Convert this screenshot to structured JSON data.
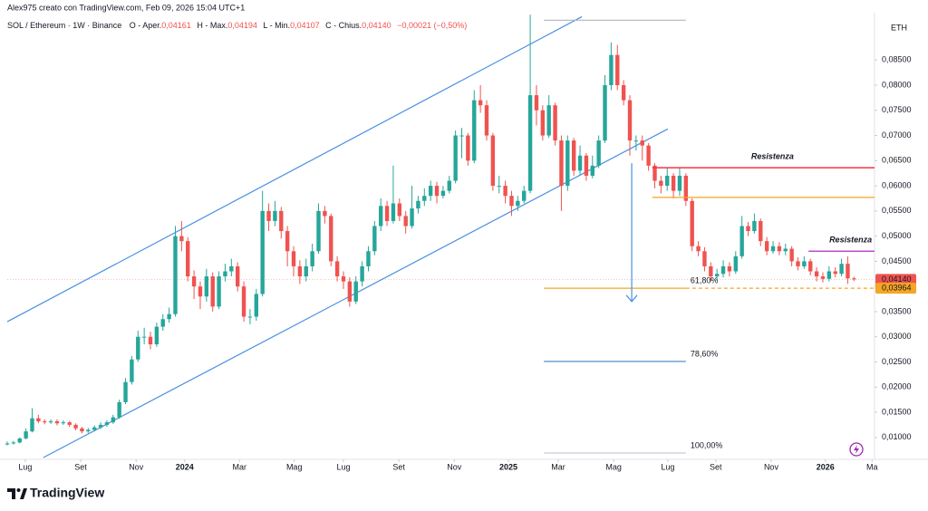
{
  "chart_data": {
    "type": "candlestick",
    "credit": "Alex975 creato con TradingView.com, Feb 09, 2026 15:04 UTC+1",
    "symbol": "SOL / Ethereum · 1W · Binance",
    "ohlc_legend": [
      {
        "label": "O - Aper.",
        "value": "0,04161"
      },
      {
        "label": "H - Max.",
        "value": "0,04194"
      },
      {
        "label": "L - Min.",
        "value": "0,04107"
      },
      {
        "label": "C - Chius.",
        "value": "0,04140"
      }
    ],
    "change": "−0,00021 (−0,50%)",
    "currency": "ETH",
    "brand": "TradingView",
    "up_color": "#26a69a",
    "down_color": "#ef5350",
    "grid": false,
    "xlim": [
      0,
      139.3
    ],
    "ylim": [
      0.006,
      0.0944
    ],
    "yticks": [
      {
        "value": 0.01,
        "label": "0,01000"
      },
      {
        "value": 0.015,
        "label": "0,01500"
      },
      {
        "value": 0.02,
        "label": "0,02000"
      },
      {
        "value": 0.025,
        "label": "0,02500"
      },
      {
        "value": 0.03,
        "label": "0,03000"
      },
      {
        "value": 0.035,
        "label": "0,03500"
      },
      {
        "value": 0.04,
        "label": "0,04000"
      },
      {
        "value": 0.045,
        "label": "0,04500"
      },
      {
        "value": 0.05,
        "label": "0,05000"
      },
      {
        "value": 0.055,
        "label": "0,05500"
      },
      {
        "value": 0.06,
        "label": "0,06000"
      },
      {
        "value": 0.065,
        "label": "0,06500"
      },
      {
        "value": 0.07,
        "label": "0,07000"
      },
      {
        "value": 0.075,
        "label": "0,07500"
      },
      {
        "value": 0.08,
        "label": "0,08000"
      },
      {
        "value": 0.085,
        "label": "0,08500"
      }
    ],
    "xticks": [
      {
        "value": 2.9,
        "label": "Lug"
      },
      {
        "value": 11.8,
        "label": "Set"
      },
      {
        "value": 20.7,
        "label": "Nov"
      },
      {
        "value": 28.5,
        "label": "2024"
      },
      {
        "value": 37.3,
        "label": "Mar"
      },
      {
        "value": 46.1,
        "label": "Mag"
      },
      {
        "value": 54.0,
        "label": "Lug"
      },
      {
        "value": 62.9,
        "label": "Set"
      },
      {
        "value": 71.8,
        "label": "Nov"
      },
      {
        "value": 80.5,
        "label": "2025"
      },
      {
        "value": 88.5,
        "label": "Mar"
      },
      {
        "value": 97.4,
        "label": "Mag"
      },
      {
        "value": 106.1,
        "label": "Lug"
      },
      {
        "value": 113.8,
        "label": "Set"
      },
      {
        "value": 122.7,
        "label": "Nov"
      },
      {
        "value": 131.4,
        "label": "2026"
      },
      {
        "value": 138.9,
        "label": "Ma"
      }
    ],
    "open": [
      0.0086,
      0.0088,
      0.009,
      0.0098,
      0.0112,
      0.0138,
      0.0132,
      0.013,
      0.0132,
      0.0128,
      0.013,
      0.0125,
      0.0118,
      0.0112,
      0.0115,
      0.012,
      0.0125,
      0.013,
      0.014,
      0.017,
      0.021,
      0.0255,
      0.03,
      0.03,
      0.0285,
      0.032,
      0.0335,
      0.0345,
      0.05,
      0.049,
      0.042,
      0.04,
      0.038,
      0.042,
      0.036,
      0.042,
      0.043,
      0.044,
      0.04,
      0.034,
      0.034,
      0.0385,
      0.055,
      0.053,
      0.055,
      0.051,
      0.047,
      0.044,
      0.042,
      0.044,
      0.047,
      0.055,
      0.054,
      0.045,
      0.042,
      0.041,
      0.037,
      0.041,
      0.044,
      0.047,
      0.052,
      0.056,
      0.053,
      0.0565,
      0.054,
      0.052,
      0.0555,
      0.057,
      0.058,
      0.06,
      0.058,
      0.059,
      0.061,
      0.07,
      0.07,
      0.065,
      0.077,
      0.076,
      0.07,
      0.06,
      0.06,
      0.058,
      0.056,
      0.057,
      0.059,
      0.078,
      0.075,
      0.07,
      0.076,
      0.069,
      0.06,
      0.069,
      0.063,
      0.066,
      0.062,
      0.064,
      0.069,
      0.08,
      0.086,
      0.08,
      0.077,
      0.069,
      0.069,
      0.068,
      0.064,
      0.061,
      0.06,
      0.062,
      0.059,
      0.062,
      0.057,
      0.048,
      0.047,
      0.044,
      0.042,
      0.0425,
      0.044,
      0.043,
      0.046,
      0.052,
      0.051,
      0.053,
      0.049,
      0.047,
      0.048,
      0.047,
      0.0475,
      0.045,
      0.044,
      0.045,
      0.043,
      0.042,
      0.0415,
      0.043,
      0.0425,
      0.0445,
      0.04161
    ],
    "high": [
      0.0092,
      0.0093,
      0.01,
      0.0118,
      0.0158,
      0.0145,
      0.0136,
      0.0136,
      0.0136,
      0.0134,
      0.0133,
      0.0128,
      0.0121,
      0.0119,
      0.0124,
      0.013,
      0.0134,
      0.0145,
      0.0175,
      0.0218,
      0.0262,
      0.0312,
      0.0318,
      0.031,
      0.0328,
      0.0345,
      0.0358,
      0.052,
      0.053,
      0.0498,
      0.0432,
      0.041,
      0.0435,
      0.0428,
      0.043,
      0.0445,
      0.0455,
      0.0448,
      0.041,
      0.0355,
      0.0395,
      0.059,
      0.0565,
      0.057,
      0.0558,
      0.052,
      0.048,
      0.0452,
      0.0455,
      0.0485,
      0.0565,
      0.056,
      0.0545,
      0.046,
      0.043,
      0.0418,
      0.042,
      0.045,
      0.048,
      0.053,
      0.0575,
      0.057,
      0.064,
      0.0575,
      0.055,
      0.06,
      0.058,
      0.0595,
      0.061,
      0.0608,
      0.06,
      0.062,
      0.071,
      0.0715,
      0.0705,
      0.079,
      0.08,
      0.077,
      0.0705,
      0.062,
      0.061,
      0.059,
      0.058,
      0.06,
      0.094,
      0.08,
      0.076,
      0.078,
      0.0765,
      0.07,
      0.07,
      0.0695,
      0.068,
      0.0665,
      0.066,
      0.07,
      0.082,
      0.0885,
      0.088,
      0.081,
      0.078,
      0.07,
      0.07,
      0.0685,
      0.0645,
      0.062,
      0.0635,
      0.0625,
      0.0635,
      0.0625,
      0.0575,
      0.049,
      0.0478,
      0.0448,
      0.0435,
      0.0452,
      0.0448,
      0.047,
      0.054,
      0.0528,
      0.0545,
      0.0535,
      0.0498,
      0.049,
      0.0488,
      0.0485,
      0.048,
      0.0458,
      0.046,
      0.0455,
      0.0438,
      0.0428,
      0.044,
      0.0438,
      0.0455,
      0.046,
      0.04194
    ],
    "low": [
      0.0084,
      0.0086,
      0.0088,
      0.0096,
      0.011,
      0.0128,
      0.0126,
      0.0127,
      0.0124,
      0.0125,
      0.0121,
      0.0114,
      0.0108,
      0.0109,
      0.0112,
      0.0117,
      0.0121,
      0.0127,
      0.0137,
      0.0166,
      0.0205,
      0.025,
      0.0285,
      0.0275,
      0.028,
      0.0312,
      0.0328,
      0.034,
      0.047,
      0.041,
      0.0375,
      0.0355,
      0.037,
      0.035,
      0.0355,
      0.041,
      0.042,
      0.039,
      0.033,
      0.0325,
      0.0332,
      0.038,
      0.051,
      0.052,
      0.0495,
      0.044,
      0.042,
      0.0405,
      0.041,
      0.043,
      0.0465,
      0.0525,
      0.044,
      0.041,
      0.0395,
      0.036,
      0.0365,
      0.04,
      0.043,
      0.0462,
      0.051,
      0.052,
      0.0525,
      0.053,
      0.0505,
      0.0515,
      0.0545,
      0.056,
      0.057,
      0.0565,
      0.0575,
      0.0585,
      0.0605,
      0.0655,
      0.064,
      0.0645,
      0.0745,
      0.069,
      0.059,
      0.0585,
      0.0565,
      0.054,
      0.055,
      0.0565,
      0.0585,
      0.072,
      0.069,
      0.0695,
      0.068,
      0.055,
      0.059,
      0.062,
      0.062,
      0.061,
      0.0615,
      0.0635,
      0.0685,
      0.079,
      0.079,
      0.076,
      0.066,
      0.067,
      0.065,
      0.063,
      0.0595,
      0.0585,
      0.059,
      0.0575,
      0.058,
      0.056,
      0.047,
      0.046,
      0.043,
      0.041,
      0.0412,
      0.0418,
      0.042,
      0.0425,
      0.0455,
      0.05,
      0.0505,
      0.048,
      0.0462,
      0.0465,
      0.0462,
      0.0462,
      0.044,
      0.0432,
      0.0435,
      0.0422,
      0.041,
      0.0408,
      0.041,
      0.0418,
      0.042,
      0.0405,
      0.04107
    ],
    "close": [
      0.0088,
      0.009,
      0.0098,
      0.0112,
      0.0138,
      0.0132,
      0.013,
      0.0132,
      0.0128,
      0.013,
      0.0125,
      0.0118,
      0.0112,
      0.0115,
      0.012,
      0.0125,
      0.013,
      0.014,
      0.017,
      0.021,
      0.0255,
      0.03,
      0.03,
      0.0285,
      0.032,
      0.0335,
      0.0345,
      0.05,
      0.049,
      0.042,
      0.04,
      0.038,
      0.042,
      0.036,
      0.042,
      0.043,
      0.044,
      0.04,
      0.034,
      0.034,
      0.0385,
      0.055,
      0.053,
      0.055,
      0.051,
      0.047,
      0.044,
      0.042,
      0.044,
      0.047,
      0.055,
      0.054,
      0.045,
      0.042,
      0.041,
      0.037,
      0.041,
      0.044,
      0.047,
      0.052,
      0.056,
      0.053,
      0.0565,
      0.054,
      0.052,
      0.0555,
      0.057,
      0.058,
      0.06,
      0.058,
      0.059,
      0.061,
      0.07,
      0.07,
      0.065,
      0.077,
      0.076,
      0.07,
      0.06,
      0.06,
      0.058,
      0.056,
      0.057,
      0.059,
      0.078,
      0.075,
      0.07,
      0.076,
      0.069,
      0.06,
      0.069,
      0.063,
      0.066,
      0.062,
      0.064,
      0.069,
      0.08,
      0.086,
      0.08,
      0.077,
      0.069,
      0.069,
      0.068,
      0.064,
      0.061,
      0.06,
      0.062,
      0.059,
      0.062,
      0.057,
      0.048,
      0.047,
      0.044,
      0.042,
      0.0425,
      0.044,
      0.043,
      0.046,
      0.052,
      0.051,
      0.053,
      0.049,
      0.047,
      0.048,
      0.047,
      0.0475,
      0.045,
      0.044,
      0.045,
      0.043,
      0.042,
      0.0415,
      0.043,
      0.0425,
      0.0445,
      0.0416,
      0.0414
    ],
    "trendlines": [
      {
        "points": [
          [
            0,
            0.033
          ],
          [
            92.3,
            0.0936
          ]
        ],
        "color": "#4a90e2"
      },
      {
        "points": [
          [
            5.8,
            0.006
          ],
          [
            106.1,
            0.0713
          ]
        ],
        "color": "#4a90e2"
      }
    ],
    "arrow": {
      "index": 100.3,
      "from": 0.0645,
      "to": 0.037,
      "color": "#4a90e2"
    },
    "levels": [
      {
        "value": 0.0929,
        "from": 86.2,
        "to": 109,
        "color": "#b2b5be"
      },
      {
        "value": 0.03964,
        "from": 86.2,
        "to": 109,
        "color": "#f5a623",
        "label": "61,80%",
        "label_position": "right"
      },
      {
        "value": 0.0251,
        "from": 86.2,
        "to": 109,
        "color": "#3d85c6",
        "label": "78,60%",
        "label_position": "right"
      },
      {
        "value": 0.0069,
        "from": 86.2,
        "to": 109,
        "color": "#c8cad0",
        "label": "100,00%",
        "label_position": "right"
      },
      {
        "value": 0.0636,
        "from": 103.6,
        "to": 139.3,
        "color": "#f23645",
        "label": "Resistenza",
        "label_position": "above"
      },
      {
        "value": 0.0577,
        "from": 103.6,
        "to": 139.3,
        "color": "#f5a623"
      },
      {
        "value": 0.047,
        "from": 128.7,
        "to": 139.3,
        "color": "#c04bd0",
        "label": "Resistenza",
        "label_position": "above"
      },
      {
        "value": 0.03964,
        "from": 109,
        "to": 139.3,
        "color": "#f5a623",
        "dashed": true
      }
    ],
    "price_labels": [
      {
        "value": 0.0414,
        "label": "0,04140",
        "color": "#ef5350"
      },
      {
        "value": 0.03964,
        "label": "0,03964",
        "color": "#f5a623"
      }
    ]
  }
}
